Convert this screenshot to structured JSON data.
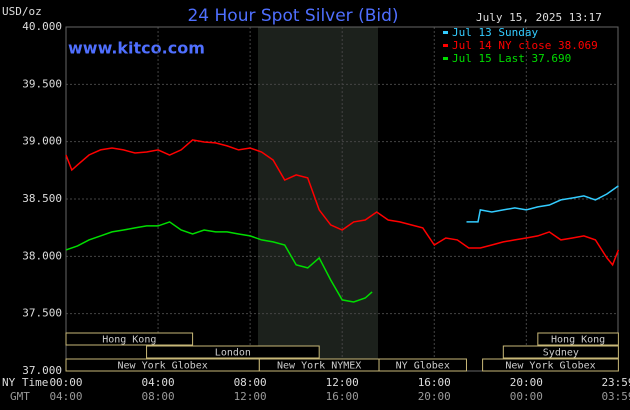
{
  "chart_data": {
    "type": "line",
    "title": "24 Hour Spot Silver (Bid)",
    "timestamp": "July 15, 2025 13:17",
    "website": "www.kitco.com",
    "y_label": "USD/oz",
    "x_row_label": "NY Time",
    "gmt_row_label": "GMT",
    "xlim": [
      0,
      23.983
    ],
    "xticks": [
      {
        "value": 0,
        "label": "00:00"
      },
      {
        "value": 4,
        "label": "04:00"
      },
      {
        "value": 8,
        "label": "08:00"
      },
      {
        "value": 12,
        "label": "12:00"
      },
      {
        "value": 16,
        "label": "16:00"
      },
      {
        "value": 20,
        "label": "20:00"
      },
      {
        "value": 23.983,
        "label": "23:59"
      }
    ],
    "gmt_labels": [
      "04:00",
      "08:00",
      "12:00",
      "16:00",
      "20:00",
      "00:00",
      "03:59"
    ],
    "ylim": [
      37,
      40
    ],
    "yticks": [
      {
        "value": 37,
        "label": "37.000"
      },
      {
        "value": 37.5,
        "label": "37.500"
      },
      {
        "value": 38,
        "label": "38.000"
      },
      {
        "value": 38.5,
        "label": "38.500"
      },
      {
        "value": 39,
        "label": "39.000"
      },
      {
        "value": 39.5,
        "label": "39.500"
      },
      {
        "value": 40,
        "label": "40.000"
      }
    ],
    "grid": true,
    "sessions": [
      "Hong Kong",
      "London",
      "New York Globex",
      "New York NYMEX",
      "NY Globex",
      "Hong Kong",
      "Sydney",
      "New York Globex"
    ],
    "series": [
      {
        "name": "Jul 13 Sunday",
        "color": "#33ccff",
        "x": [
          17.4,
          17.9,
          18,
          18.5,
          19,
          19.5,
          20,
          20.5,
          21,
          21.5,
          22,
          22.5,
          23,
          23.5,
          24
        ],
        "values": [
          38.3,
          38.3,
          38.405,
          38.387,
          38.405,
          38.422,
          38.405,
          38.431,
          38.448,
          38.492,
          38.509,
          38.527,
          38.492,
          38.544,
          38.614
        ]
      },
      {
        "name": "Jul 14 NY close 38.069",
        "color": "#ff0000",
        "x": [
          0,
          0.25,
          0.5,
          1,
          1.5,
          2,
          2.5,
          3,
          3.5,
          4,
          4.5,
          5,
          5.5,
          6,
          6.5,
          7,
          7.5,
          8,
          8.5,
          9,
          9.5,
          10,
          10.5,
          11,
          11.5,
          12,
          12.5,
          13,
          13.5,
          14,
          14.5,
          15,
          15.5,
          16,
          16.5,
          17,
          17.5,
          18,
          18.5,
          19,
          19.5,
          20,
          20.5,
          21,
          21.5,
          22,
          22.5,
          23,
          23.5,
          23.75,
          24
        ],
        "values": [
          38.884,
          38.753,
          38.797,
          38.884,
          38.928,
          38.945,
          38.928,
          38.901,
          38.91,
          38.928,
          38.884,
          38.928,
          39.015,
          38.997,
          38.989,
          38.963,
          38.928,
          38.945,
          38.91,
          38.84,
          38.666,
          38.71,
          38.684,
          38.405,
          38.274,
          38.23,
          38.3,
          38.317,
          38.387,
          38.317,
          38.3,
          38.274,
          38.248,
          38.099,
          38.16,
          38.143,
          38.073,
          38.073,
          38.099,
          38.126,
          38.143,
          38.16,
          38.178,
          38.213,
          38.143,
          38.16,
          38.178,
          38.143,
          37.986,
          37.925,
          38.056
        ]
      },
      {
        "name": "Jul 15 Last 37.690",
        "color": "#00dd00",
        "x": [
          0,
          0.5,
          1,
          1.5,
          2,
          2.5,
          3,
          3.5,
          4,
          4.5,
          5,
          5.5,
          6,
          6.5,
          7,
          7.5,
          8,
          8.5,
          9,
          9.5,
          10,
          10.5,
          11,
          11.5,
          12,
          12.5,
          13,
          13.3
        ],
        "values": [
          38.056,
          38.091,
          38.143,
          38.178,
          38.213,
          38.23,
          38.248,
          38.265,
          38.265,
          38.3,
          38.23,
          38.195,
          38.23,
          38.213,
          38.213,
          38.195,
          38.178,
          38.143,
          38.126,
          38.099,
          37.925,
          37.899,
          37.986,
          37.794,
          37.62,
          37.602,
          37.637,
          37.69
        ]
      }
    ]
  }
}
